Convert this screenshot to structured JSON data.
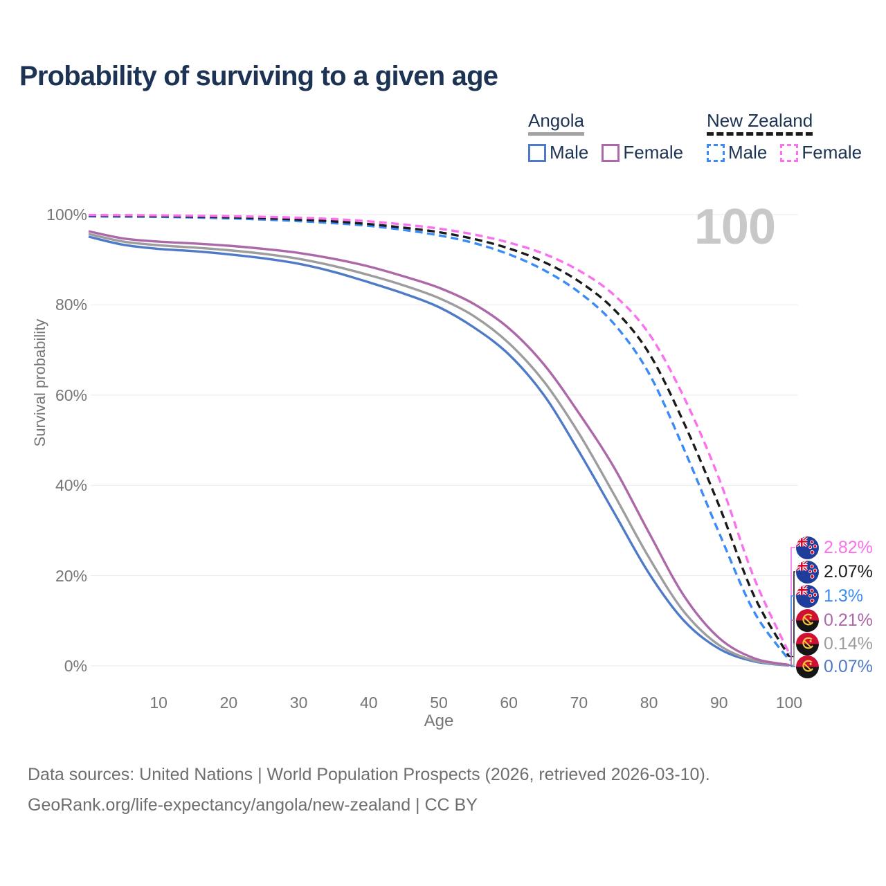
{
  "title": "Probability of surviving to a given age",
  "watermark": "100",
  "legend": {
    "groups": [
      {
        "name": "Angola",
        "underline_color": "#a3a3a3",
        "underline_style": "solid",
        "items": [
          {
            "label": "Male",
            "color": "#4e7ac7",
            "dash": false
          },
          {
            "label": "Female",
            "color": "#ac68a8",
            "dash": false
          }
        ]
      },
      {
        "name": "New Zealand",
        "underline_color": "#1a1a1a",
        "underline_style": "dashed",
        "items": [
          {
            "label": "Male",
            "color": "#3b8bf5",
            "dash": true
          },
          {
            "label": "Female",
            "color": "#f971ee",
            "dash": true
          }
        ]
      }
    ]
  },
  "chart_data": {
    "type": "line",
    "title": "Probability of surviving to a given age",
    "xlabel": "Age",
    "ylabel": "Survival probability",
    "xlim": [
      0,
      100
    ],
    "ylim": [
      0,
      100
    ],
    "grid": "horizontal",
    "legend_position": "top-right",
    "x_ticks": [
      {
        "v": 10,
        "label": "10"
      },
      {
        "v": 20,
        "label": "20"
      },
      {
        "v": 30,
        "label": "30"
      },
      {
        "v": 40,
        "label": "40"
      },
      {
        "v": 50,
        "label": "50"
      },
      {
        "v": 60,
        "label": "60"
      },
      {
        "v": 70,
        "label": "70"
      },
      {
        "v": 80,
        "label": "80"
      },
      {
        "v": 90,
        "label": "90"
      },
      {
        "v": 100,
        "label": "100"
      }
    ],
    "y_ticks": [
      {
        "v": 0,
        "label": "0%"
      },
      {
        "v": 20,
        "label": "20%"
      },
      {
        "v": 40,
        "label": "40%"
      },
      {
        "v": 60,
        "label": "60%"
      },
      {
        "v": 80,
        "label": "80%"
      },
      {
        "v": 100,
        "label": "100%"
      }
    ],
    "x": [
      0,
      5,
      10,
      15,
      20,
      25,
      30,
      35,
      40,
      45,
      50,
      55,
      60,
      65,
      70,
      75,
      80,
      85,
      90,
      95,
      100
    ],
    "series": [
      {
        "name": "Angola Male",
        "color": "#4e7ac7",
        "dash": false,
        "values": [
          95.1,
          93.3,
          92.4,
          91.9,
          91.2,
          90.3,
          89.1,
          87.3,
          85.0,
          82.5,
          79.5,
          75.0,
          69.0,
          60.0,
          47.5,
          34.0,
          20.5,
          10.0,
          3.8,
          1.0,
          0.07
        ]
      },
      {
        "name": "Angola (both sexes)",
        "color": "#9d9d9d",
        "dash": false,
        "values": [
          95.7,
          94.0,
          93.2,
          92.7,
          92.1,
          91.3,
          90.2,
          88.6,
          86.6,
          84.3,
          81.5,
          77.5,
          71.5,
          63.0,
          51.5,
          38.0,
          24.0,
          12.0,
          4.6,
          1.2,
          0.14
        ]
      },
      {
        "name": "Angola Female",
        "color": "#ac68a8",
        "dash": false,
        "values": [
          96.3,
          94.7,
          94.0,
          93.6,
          93.1,
          92.4,
          91.5,
          90.2,
          88.5,
          86.3,
          83.8,
          80.2,
          74.8,
          66.8,
          56.0,
          44.0,
          29.5,
          15.5,
          6.2,
          1.7,
          0.21
        ]
      },
      {
        "name": "New Zealand Male",
        "color": "#3b8bf5",
        "dash": true,
        "values": [
          99.6,
          99.55,
          99.5,
          99.35,
          99.15,
          98.9,
          98.55,
          98.1,
          97.5,
          96.6,
          95.4,
          93.7,
          91.2,
          87.7,
          82.8,
          75.8,
          64.8,
          48.0,
          29.5,
          12.0,
          1.3
        ]
      },
      {
        "name": "New Zealand (both sexes)",
        "color": "#1a1a1a",
        "dash": true,
        "values": [
          99.75,
          99.7,
          99.65,
          99.55,
          99.4,
          99.2,
          98.9,
          98.5,
          97.9,
          97.1,
          96.1,
          94.6,
          92.5,
          89.5,
          85.2,
          79.0,
          69.3,
          53.8,
          35.5,
          15.5,
          2.07
        ]
      },
      {
        "name": "New Zealand Female",
        "color": "#f971ee",
        "dash": true,
        "values": [
          99.9,
          99.87,
          99.83,
          99.75,
          99.65,
          99.5,
          99.3,
          99.0,
          98.5,
          97.8,
          96.9,
          95.6,
          93.8,
          91.3,
          87.6,
          82.2,
          73.6,
          59.5,
          41.5,
          19.5,
          2.82
        ]
      }
    ]
  },
  "end_labels": [
    {
      "value": "2.82%",
      "color": "#f971ee",
      "flag": "new-zealand",
      "series": "New Zealand Female"
    },
    {
      "value": "2.07%",
      "color": "#1a1a1a",
      "flag": "new-zealand",
      "series": "New Zealand (both sexes)"
    },
    {
      "value": "1.3%",
      "color": "#3b8bf5",
      "flag": "new-zealand",
      "series": "New Zealand Male"
    },
    {
      "value": "0.21%",
      "color": "#ac68a8",
      "flag": "angola",
      "series": "Angola Female"
    },
    {
      "value": "0.14%",
      "color": "#9d9d9d",
      "flag": "angola",
      "series": "Angola (both sexes)"
    },
    {
      "value": "0.07%",
      "color": "#4e7ac7",
      "flag": "angola",
      "series": "Angola Male"
    }
  ],
  "footer": {
    "line1": "Data sources: United Nations | World Population Prospects (2026, retrieved 2026-03-10).",
    "line2": "GeoRank.org/life-expectancy/angola/new-zealand | CC BY"
  }
}
